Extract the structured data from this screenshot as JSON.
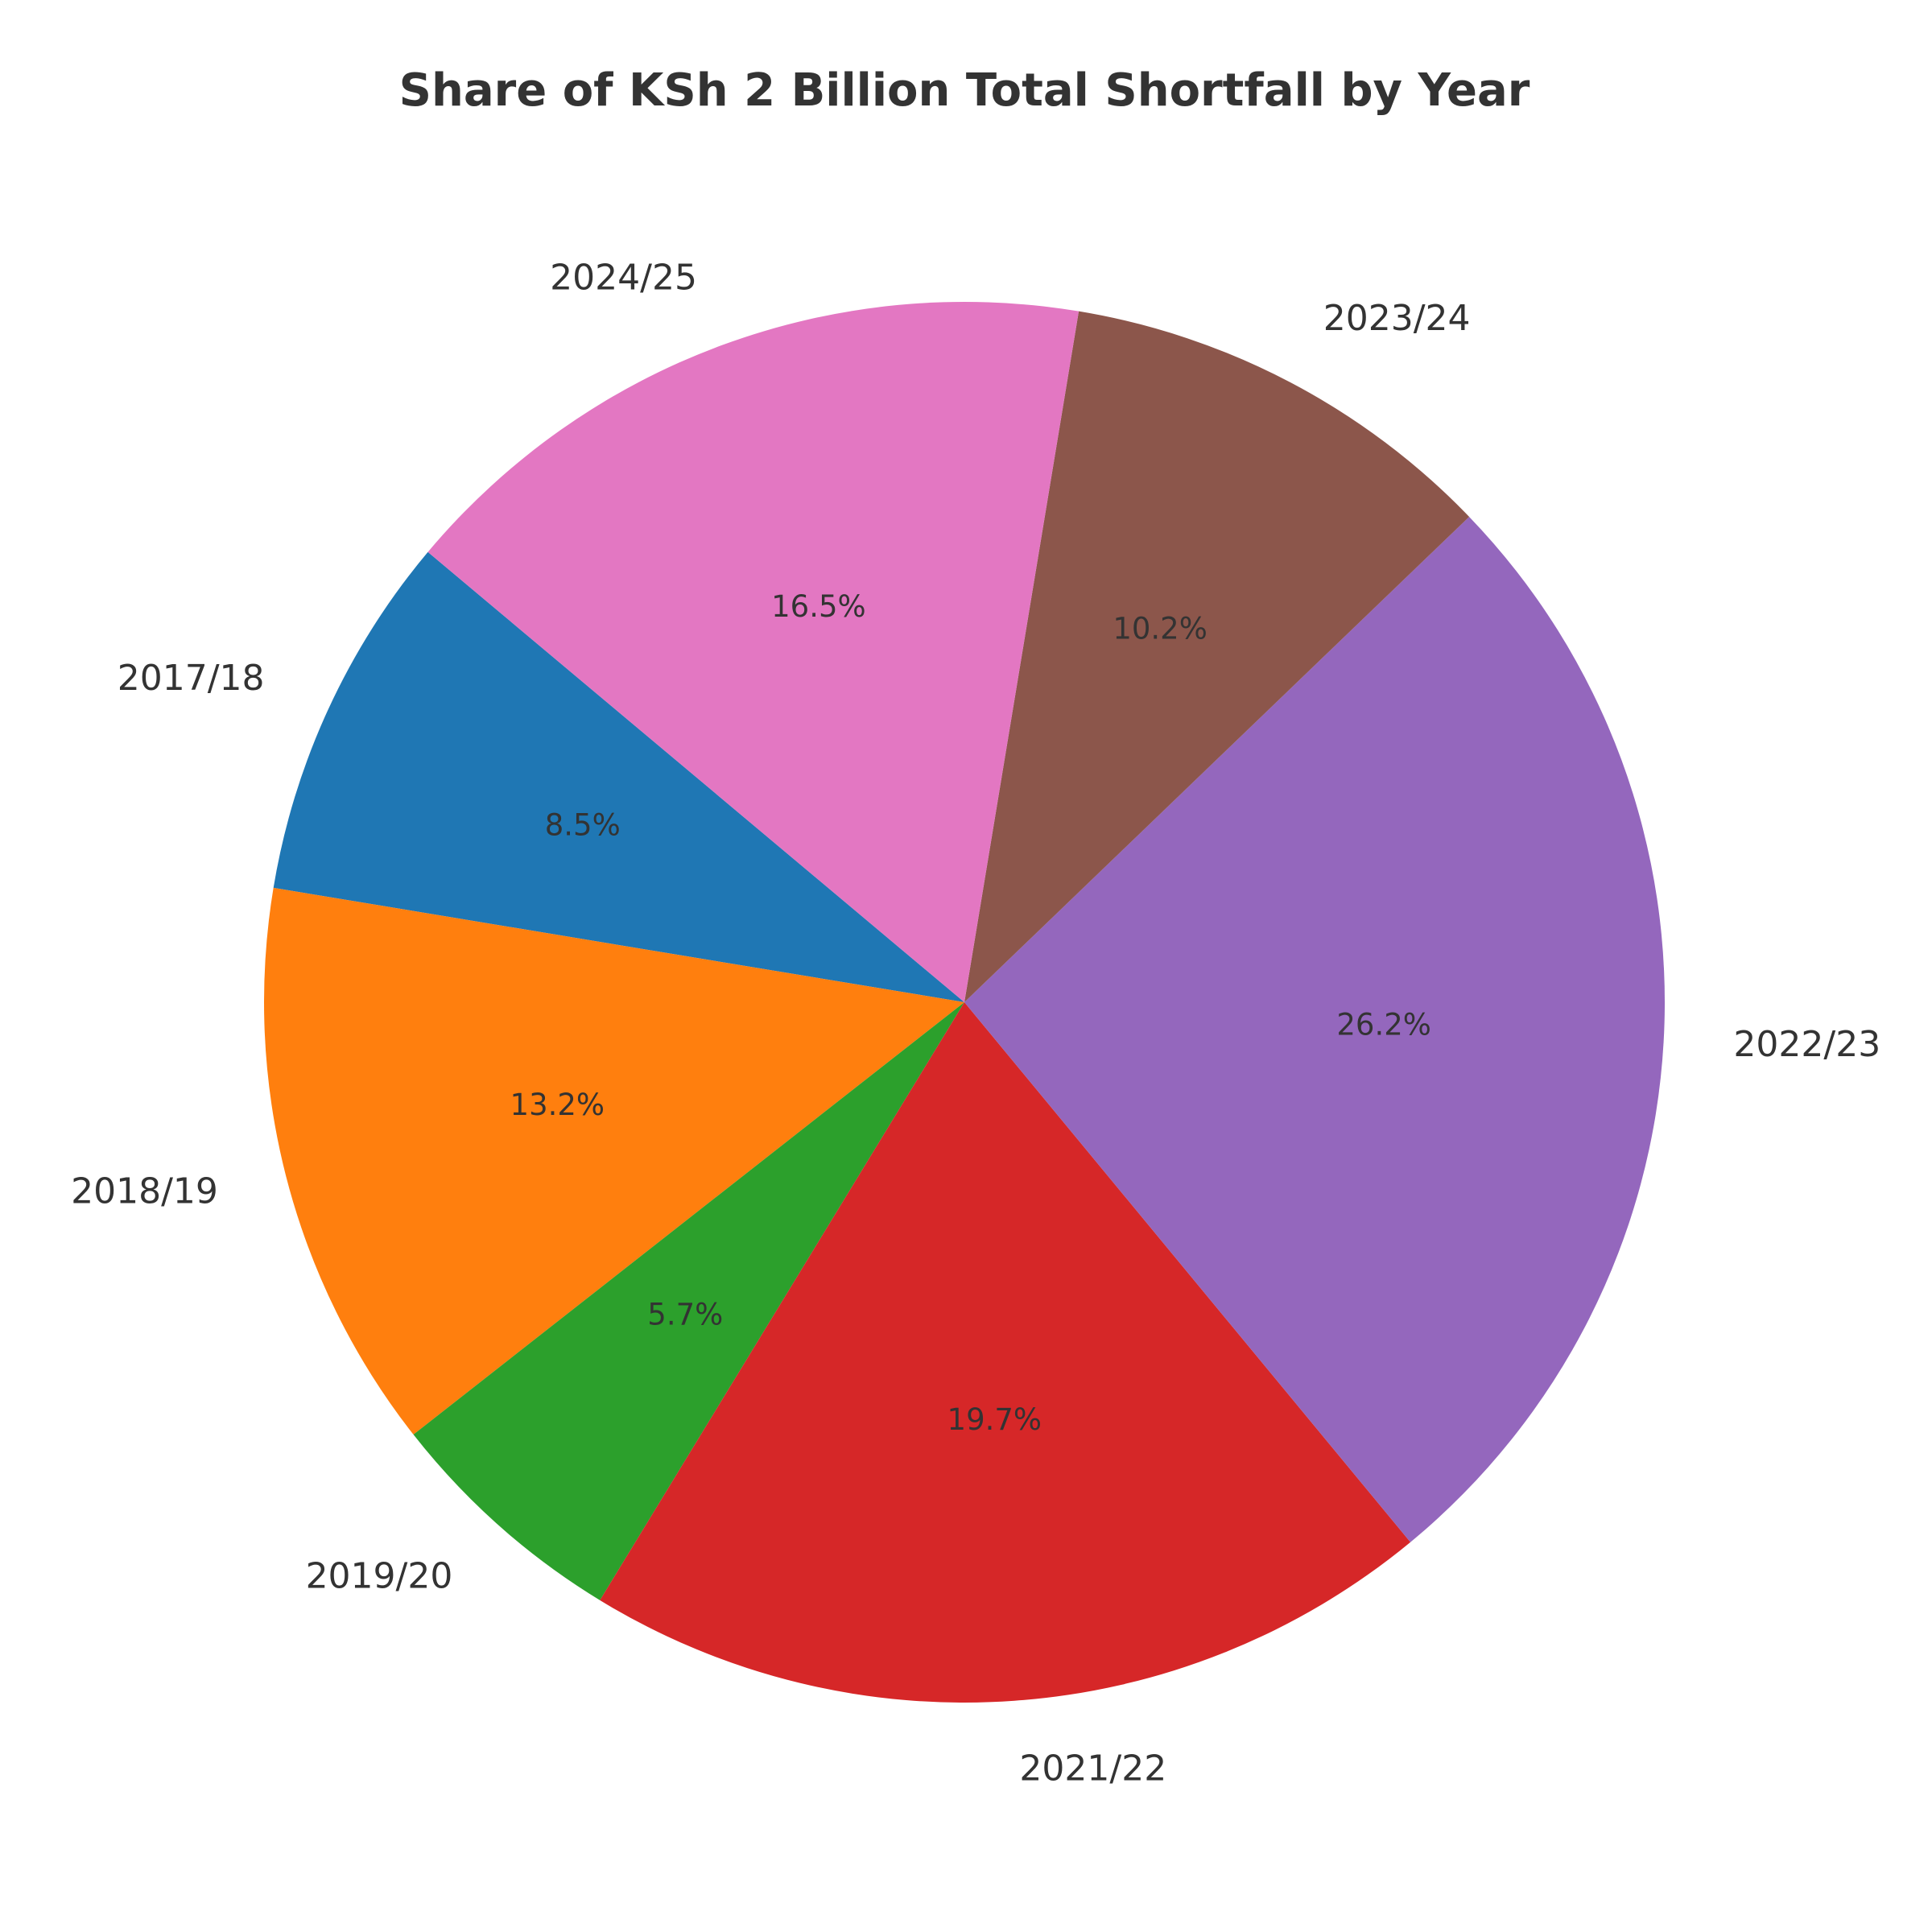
{
  "chart_data": {
    "type": "pie",
    "title": "Share of KSh 2 Billion Total Shortfall by Year",
    "categories": [
      "2017/18",
      "2018/19",
      "2019/20",
      "2021/22",
      "2022/23",
      "2023/24",
      "2024/25"
    ],
    "values": [
      8.5,
      13.2,
      5.7,
      19.7,
      26.2,
      10.2,
      16.5
    ],
    "value_labels": [
      "8.5%",
      "13.2%",
      "5.7%",
      "19.7%",
      "26.2%",
      "10.2%",
      "16.5%"
    ],
    "colors": [
      "#1f77b4",
      "#ff7f0e",
      "#2ca02c",
      "#d62728",
      "#9467bd",
      "#8c564b",
      "#e377c2"
    ],
    "start_angle": 140
  }
}
